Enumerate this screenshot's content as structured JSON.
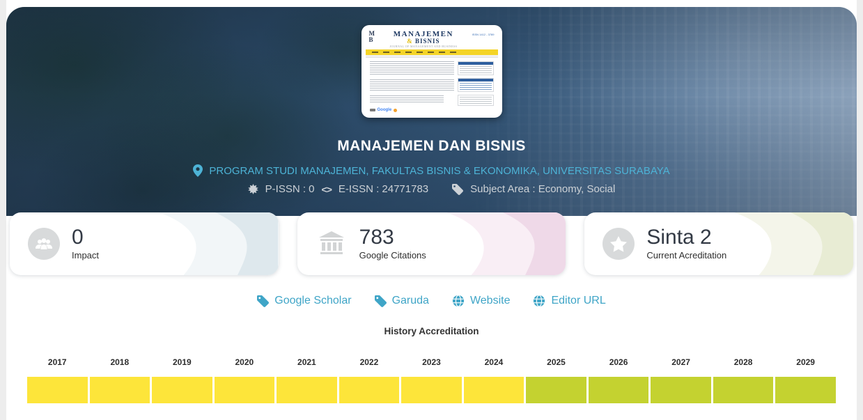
{
  "banner": {
    "title": "MANAJEMEN DAN BISNIS",
    "affiliation": "PROGRAM STUDI MANAJEMEN, FAKULTAS BISNIS & EKONOMIKA, UNIVERSITAS SURABAYA",
    "p_issn": "P-ISSN : 0",
    "e_issn": "E-ISSN : 24771783",
    "subject_area": "Subject Area : Economy, Social",
    "thumbnail": {
      "logo_top": "M",
      "logo_bottom": "B",
      "masthead_title": "MANAJEMEN",
      "masthead_amp": "&",
      "masthead_sub": "BISNIS",
      "tagline": "JOURNAL OF MANAGEMENT AND BUSINESS",
      "issn_note": "ISSN 1412 - 3789",
      "footer_logo": "Google"
    }
  },
  "stats": [
    {
      "icon": "users-icon",
      "value": "0",
      "label": "Impact",
      "wave": [
        "#f2f6f8",
        "#dee8ed"
      ]
    },
    {
      "icon": "bank-icon",
      "value": "783",
      "label": "Google Citations",
      "wave": [
        "#f9eef5",
        "#efd9e8"
      ]
    },
    {
      "icon": "star-icon",
      "value": "Sinta 2",
      "label": "Current Acreditation",
      "wave": [
        "#f4f5ea",
        "#e8ecd4"
      ]
    }
  ],
  "links": [
    {
      "icon": "tag-icon",
      "label": "Google Scholar"
    },
    {
      "icon": "tag-icon",
      "label": "Garuda"
    },
    {
      "icon": "globe-icon",
      "label": "Website"
    },
    {
      "icon": "globe-icon",
      "label": "Editor URL"
    }
  ],
  "history": {
    "title": "History Accreditation",
    "years": [
      {
        "year": "2017",
        "color": "#fde53a"
      },
      {
        "year": "2018",
        "color": "#fde53a"
      },
      {
        "year": "2019",
        "color": "#fde53a"
      },
      {
        "year": "2020",
        "color": "#fde53a"
      },
      {
        "year": "2021",
        "color": "#fde53a"
      },
      {
        "year": "2022",
        "color": "#fde53a"
      },
      {
        "year": "2023",
        "color": "#fde53a"
      },
      {
        "year": "2024",
        "color": "#fde53a"
      },
      {
        "year": "2025",
        "color": "#c4d230"
      },
      {
        "year": "2026",
        "color": "#c4d230"
      },
      {
        "year": "2027",
        "color": "#c4d230"
      },
      {
        "year": "2028",
        "color": "#c4d230"
      },
      {
        "year": "2029",
        "color": "#c4d230"
      }
    ]
  },
  "colors": {
    "accent_blue": "#3fa5c7",
    "light_blue": "#4db3d6",
    "muted_gray": "#ccd1d6",
    "yellow": "#fde53a",
    "green": "#c4d230"
  }
}
